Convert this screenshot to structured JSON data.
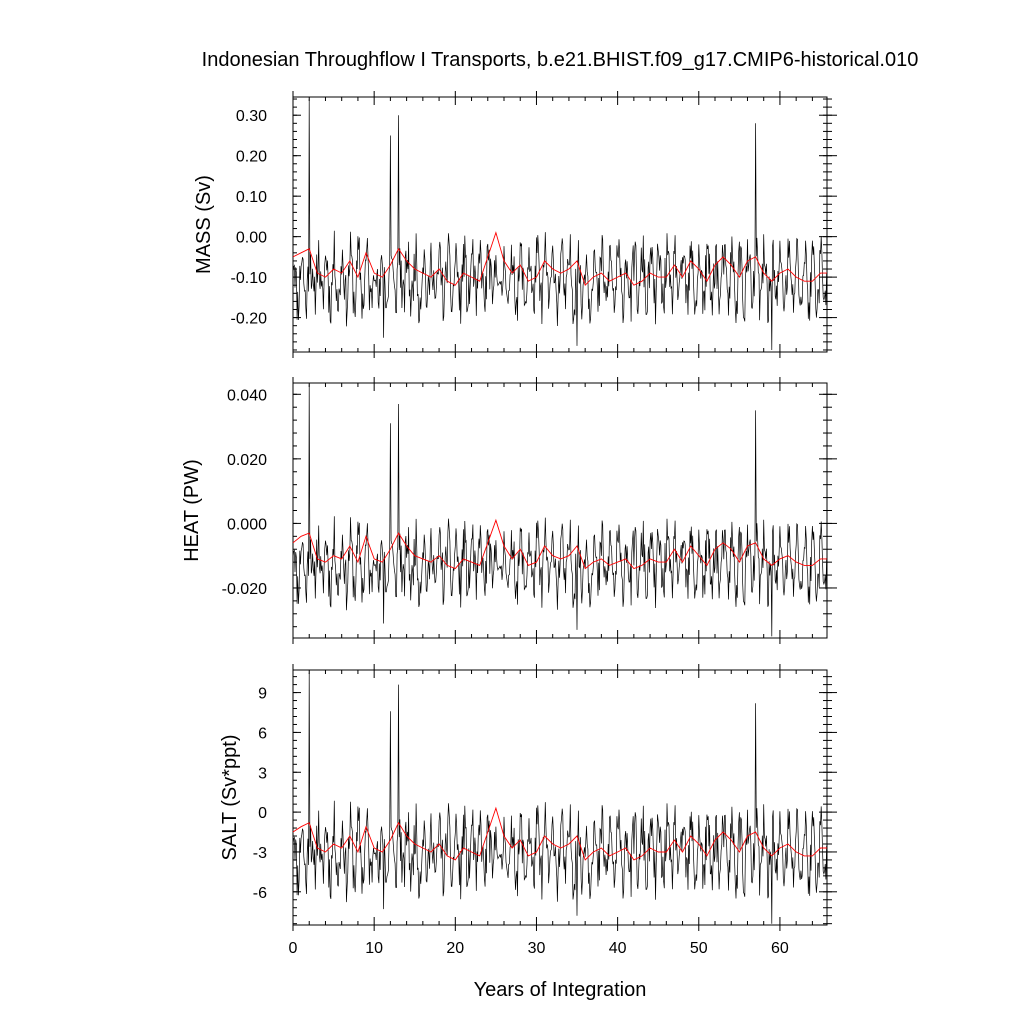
{
  "title": "Indonesian Throughflow I Transports, b.e21.BHIST.f09_g17.CMIP6-historical.010",
  "chart_data": [
    {
      "type": "line",
      "ylabel": "MASS (Sv)",
      "xlim": [
        0,
        65.8
      ],
      "ylim": [
        -0.285,
        0.345
      ],
      "yticks": [
        0.3,
        0.2,
        0.1,
        0.0,
        -0.1,
        -0.2
      ],
      "ytick_labels": [
        "0.30",
        "0.20",
        "0.10",
        "0.00",
        "-0.10",
        "-0.20"
      ],
      "yminor_step": 0.02,
      "series": [
        {
          "role": "monthly",
          "color": "#000000",
          "mean": -0.105,
          "amp": 0.065,
          "seed": 11,
          "spikes": [
            [
              2.0,
              0.34
            ],
            [
              13.0,
              0.3
            ],
            [
              12.0,
              0.25
            ],
            [
              57.0,
              0.28
            ],
            [
              11.2,
              -0.25
            ],
            [
              35.0,
              -0.27
            ],
            [
              59.0,
              -0.28
            ]
          ]
        },
        {
          "role": "smoothed",
          "color": "#ff0000",
          "x": [
            0,
            1,
            2,
            3,
            4,
            5,
            6,
            7,
            8,
            9,
            10,
            11,
            12,
            13,
            14,
            15,
            16,
            17,
            18,
            19,
            20,
            21,
            22,
            23,
            24,
            25,
            26,
            27,
            28,
            29,
            30,
            31,
            32,
            33,
            34,
            35,
            36,
            37,
            38,
            39,
            40,
            41,
            42,
            43,
            44,
            45,
            46,
            47,
            48,
            49,
            50,
            51,
            52,
            53,
            54,
            55,
            56,
            57,
            58,
            59,
            60,
            61,
            62,
            63,
            64,
            65
          ],
          "y": [
            -0.05,
            -0.04,
            -0.03,
            -0.09,
            -0.1,
            -0.08,
            -0.09,
            -0.06,
            -0.1,
            -0.04,
            -0.09,
            -0.1,
            -0.07,
            -0.03,
            -0.06,
            -0.08,
            -0.09,
            -0.1,
            -0.08,
            -0.11,
            -0.12,
            -0.09,
            -0.1,
            -0.11,
            -0.05,
            0.01,
            -0.06,
            -0.09,
            -0.07,
            -0.11,
            -0.1,
            -0.06,
            -0.08,
            -0.09,
            -0.08,
            -0.06,
            -0.12,
            -0.1,
            -0.09,
            -0.11,
            -0.1,
            -0.09,
            -0.12,
            -0.11,
            -0.09,
            -0.1,
            -0.1,
            -0.07,
            -0.1,
            -0.06,
            -0.08,
            -0.11,
            -0.07,
            -0.05,
            -0.07,
            -0.1,
            -0.06,
            -0.05,
            -0.09,
            -0.11,
            -0.09,
            -0.08,
            -0.1,
            -0.11,
            -0.11,
            -0.09
          ]
        }
      ]
    },
    {
      "type": "line",
      "ylabel": "HEAT (PW)",
      "xlim": [
        0,
        65.8
      ],
      "ylim": [
        -0.0355,
        0.0435
      ],
      "yticks": [
        0.04,
        0.02,
        0.0,
        -0.02
      ],
      "ytick_labels": [
        "0.040",
        "0.020",
        "0.000",
        "-0.020"
      ],
      "yminor_step": 0.004,
      "series": [
        {
          "role": "monthly",
          "color": "#000000",
          "mean": -0.0125,
          "amp": 0.008,
          "seed": 11,
          "spikes": [
            [
              2.0,
              0.043
            ],
            [
              13.0,
              0.037
            ],
            [
              12.0,
              0.031
            ],
            [
              57.0,
              0.035
            ],
            [
              11.2,
              -0.031
            ],
            [
              35.0,
              -0.033
            ],
            [
              59.0,
              -0.035
            ]
          ]
        },
        {
          "role": "smoothed",
          "color": "#ff0000",
          "x": [
            0,
            1,
            2,
            3,
            4,
            5,
            6,
            7,
            8,
            9,
            10,
            11,
            12,
            13,
            14,
            15,
            16,
            17,
            18,
            19,
            20,
            21,
            22,
            23,
            24,
            25,
            26,
            27,
            28,
            29,
            30,
            31,
            32,
            33,
            34,
            35,
            36,
            37,
            38,
            39,
            40,
            41,
            42,
            43,
            44,
            45,
            46,
            47,
            48,
            49,
            50,
            51,
            52,
            53,
            54,
            55,
            56,
            57,
            58,
            59,
            60,
            61,
            62,
            63,
            64,
            65
          ],
          "y": [
            -0.006,
            -0.004,
            -0.003,
            -0.011,
            -0.012,
            -0.01,
            -0.011,
            -0.007,
            -0.012,
            -0.004,
            -0.011,
            -0.012,
            -0.008,
            -0.003,
            -0.007,
            -0.01,
            -0.011,
            -0.012,
            -0.01,
            -0.013,
            -0.014,
            -0.011,
            -0.012,
            -0.013,
            -0.006,
            0.001,
            -0.007,
            -0.011,
            -0.008,
            -0.013,
            -0.012,
            -0.007,
            -0.01,
            -0.011,
            -0.01,
            -0.007,
            -0.014,
            -0.012,
            -0.011,
            -0.013,
            -0.012,
            -0.011,
            -0.014,
            -0.013,
            -0.011,
            -0.012,
            -0.012,
            -0.008,
            -0.012,
            -0.007,
            -0.01,
            -0.013,
            -0.008,
            -0.006,
            -0.008,
            -0.012,
            -0.007,
            -0.006,
            -0.011,
            -0.013,
            -0.011,
            -0.01,
            -0.012,
            -0.013,
            -0.013,
            -0.011
          ]
        }
      ]
    },
    {
      "type": "line",
      "ylabel": "SALT (Sv*ppt)",
      "xlim": [
        0,
        65.8
      ],
      "ylim": [
        -8.5,
        10.7
      ],
      "yticks": [
        9,
        6,
        3,
        0,
        -3,
        -6
      ],
      "ytick_labels": [
        "9",
        "6",
        "3",
        "0",
        "-3",
        "-6"
      ],
      "yminor_step": 0.6,
      "series": [
        {
          "role": "monthly",
          "color": "#000000",
          "mean": -3.0,
          "amp": 2.1,
          "seed": 11,
          "spikes": [
            [
              2.0,
              10.5
            ],
            [
              13.0,
              9.6
            ],
            [
              12.0,
              7.6
            ],
            [
              57.0,
              8.2
            ],
            [
              11.2,
              -7.3
            ],
            [
              35.0,
              -7.8
            ],
            [
              59.0,
              -8.4
            ]
          ]
        },
        {
          "role": "smoothed",
          "color": "#ff0000",
          "x": [
            0,
            1,
            2,
            3,
            4,
            5,
            6,
            7,
            8,
            9,
            10,
            11,
            12,
            13,
            14,
            15,
            16,
            17,
            18,
            19,
            20,
            21,
            22,
            23,
            24,
            25,
            26,
            27,
            28,
            29,
            30,
            31,
            32,
            33,
            34,
            35,
            36,
            37,
            38,
            39,
            40,
            41,
            42,
            43,
            44,
            45,
            46,
            47,
            48,
            49,
            50,
            51,
            52,
            53,
            54,
            55,
            56,
            57,
            58,
            59,
            60,
            61,
            62,
            63,
            64,
            65
          ],
          "y": [
            -1.5,
            -1.1,
            -0.8,
            -2.7,
            -3.0,
            -2.4,
            -2.7,
            -1.8,
            -3.0,
            -1.1,
            -2.7,
            -3.0,
            -2.1,
            -0.8,
            -1.8,
            -2.4,
            -2.7,
            -3.0,
            -2.4,
            -3.3,
            -3.6,
            -2.7,
            -3.0,
            -3.3,
            -1.5,
            0.3,
            -1.8,
            -2.7,
            -2.1,
            -3.3,
            -3.0,
            -1.8,
            -2.4,
            -2.7,
            -2.4,
            -1.8,
            -3.6,
            -3.0,
            -2.7,
            -3.3,
            -3.0,
            -2.7,
            -3.6,
            -3.3,
            -2.7,
            -3.0,
            -3.0,
            -2.1,
            -3.0,
            -1.8,
            -2.4,
            -3.3,
            -2.1,
            -1.5,
            -2.1,
            -3.0,
            -1.8,
            -1.5,
            -2.7,
            -3.3,
            -2.7,
            -2.4,
            -3.0,
            -3.3,
            -3.3,
            -2.7
          ]
        }
      ]
    }
  ],
  "xaxis": {
    "label": "Years of Integration",
    "ticks": [
      0,
      10,
      20,
      30,
      40,
      50,
      60
    ],
    "tick_labels": [
      "0",
      "10",
      "20",
      "30",
      "40",
      "50",
      "60"
    ],
    "minor_step": 2
  }
}
